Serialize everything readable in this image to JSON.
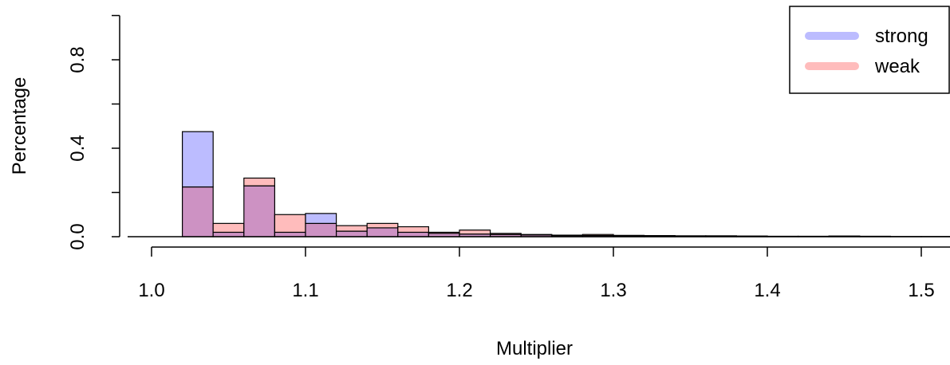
{
  "chart_data": {
    "type": "bar",
    "subtype": "overlaid-histogram",
    "title": "",
    "xlabel": "Multiplier",
    "ylabel": "Percentage",
    "xlim": [
      1.0,
      1.52
    ],
    "ylim": [
      0.0,
      1.0
    ],
    "x_ticks": [
      1.0,
      1.1,
      1.2,
      1.3,
      1.4,
      1.5
    ],
    "x_tick_labels": [
      "1.0",
      "1.1",
      "1.2",
      "1.3",
      "1.4",
      "1.5"
    ],
    "y_ticks": [
      0.0,
      0.4,
      0.8
    ],
    "y_tick_labels": [
      "0.0",
      "0.4",
      "0.8"
    ],
    "grid": false,
    "legend_position": "top-right",
    "bin_edges": [
      1.02,
      1.04,
      1.06,
      1.08,
      1.1,
      1.12,
      1.14,
      1.16,
      1.18,
      1.2,
      1.22,
      1.24,
      1.26,
      1.28,
      1.3,
      1.32,
      1.34,
      1.36,
      1.38,
      1.4,
      1.42,
      1.44,
      1.46,
      1.48,
      1.5,
      1.52
    ],
    "series": [
      {
        "name": "strong",
        "color": "#bcbcff",
        "values": [
          0.475,
          0.02,
          0.23,
          0.02,
          0.105,
          0.025,
          0.04,
          0.02,
          0.015,
          0.012,
          0.01,
          0.008,
          0.005,
          0.005,
          0.004,
          0.004,
          0.003,
          0.003,
          0.002,
          0.002,
          0.002,
          0.002,
          0.001,
          0.001,
          0.001
        ]
      },
      {
        "name": "weak",
        "color": "#ffbcbc",
        "values": [
          0.225,
          0.06,
          0.265,
          0.1,
          0.06,
          0.05,
          0.06,
          0.045,
          0.02,
          0.03,
          0.015,
          0.01,
          0.007,
          0.01,
          0.006,
          0.005,
          0.004,
          0.004,
          0.003,
          0.002,
          0.002,
          0.003,
          0.002,
          0.001,
          0.001
        ]
      }
    ],
    "overlap_color": "#cd92c3"
  }
}
